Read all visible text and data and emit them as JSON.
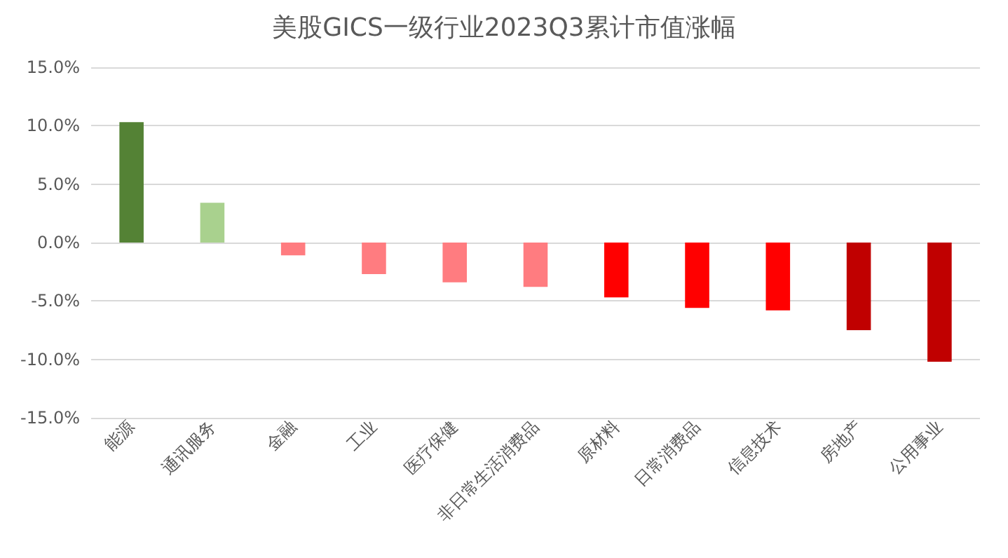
{
  "chart_data": {
    "type": "bar",
    "title": "美股GICS一级行业2023Q3累计市值涨幅",
    "categories": [
      "能源",
      "通讯服务",
      "金融",
      "工业",
      "医疗保健",
      "非日常生活消费品",
      "原材料",
      "日常消费品",
      "信息技术",
      "房地产",
      "公用事业"
    ],
    "values": [
      10.3,
      3.4,
      -1.1,
      -2.7,
      -3.4,
      -3.8,
      -4.7,
      -5.6,
      -5.8,
      -7.5,
      -10.2
    ],
    "colors": [
      "#548235",
      "#a9d18e",
      "#ff7c80",
      "#ff7c80",
      "#ff7c80",
      "#ff7c80",
      "#ff0000",
      "#ff0000",
      "#ff0000",
      "#c00000",
      "#c00000"
    ],
    "ylim": [
      -15,
      15
    ],
    "yticks": [
      {
        "value": -15,
        "label": "-15.0%"
      },
      {
        "value": -10,
        "label": "-10.0%"
      },
      {
        "value": -5,
        "label": "-5.0%"
      },
      {
        "value": 0,
        "label": "0.0%"
      },
      {
        "value": 5,
        "label": "5.0%"
      },
      {
        "value": 10,
        "label": "10.0%"
      },
      {
        "value": 15,
        "label": "15.0%"
      }
    ],
    "grid": true
  }
}
